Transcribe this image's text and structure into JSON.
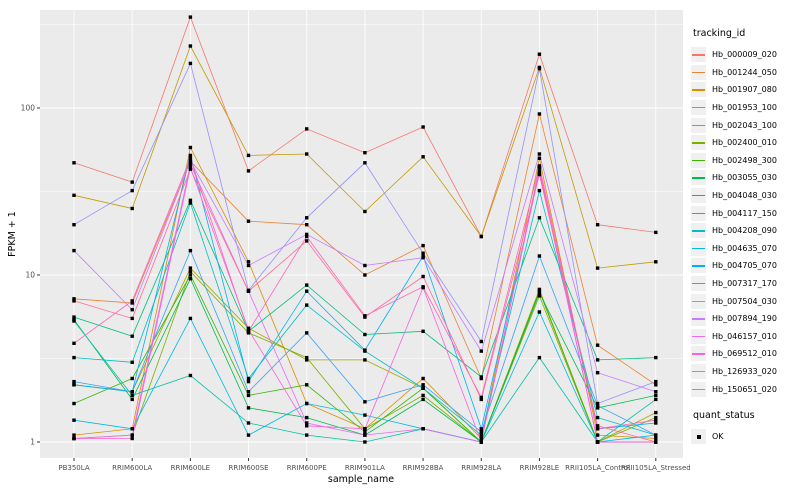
{
  "colors": {
    "panel_bg": "#EBEBEB",
    "grid_major": "#FFFFFF",
    "grid_minor": "#FFFFFF",
    "axis_text": "#4D4D4D",
    "axis_title": "#000000",
    "tick_mark": "#333333",
    "point": "#000000",
    "legend_key_bg": "#F0F0F0"
  },
  "legend": {
    "tracking_title": "tracking_id",
    "quant_title": "quant_status",
    "quant_items": [
      {
        "label": "OK",
        "marker": "black-square"
      }
    ]
  },
  "chart_data": {
    "type": "line",
    "title": "",
    "xlabel": "sample_name",
    "ylabel": "FPKM + 1",
    "y_scale": "log10",
    "y_ticks": [
      "1",
      "10",
      "100"
    ],
    "y_tick_values": [
      1,
      10,
      100
    ],
    "y_minor_values": [
      3.162,
      31.62,
      316.2
    ],
    "ylim": [
      0.93,
      390
    ],
    "grid": true,
    "legend_position": "right",
    "point_marker": "black-square",
    "categories": [
      "PB350LA",
      "RRIM600LA",
      "RRIM600LE",
      "RRIM600SE",
      "RRIM600PE",
      "RRIM901LA",
      "RRIM928BA",
      "RRIM928LA",
      "RRIM928LE",
      "RRII105LA_Control",
      "RRII105LA_Stressed"
    ],
    "series": [
      {
        "name": "Hb_000009_020",
        "color": "#F8766D",
        "values": [
          47,
          36,
          350,
          42,
          75,
          54,
          77,
          17,
          210,
          20,
          18
        ]
      },
      {
        "name": "Hb_001244_050",
        "color": "#EA8331",
        "values": [
          7.2,
          6.8,
          48,
          21,
          20,
          10,
          15,
          2.4,
          92,
          3.8,
          2.2
        ]
      },
      {
        "name": "Hb_001907_080",
        "color": "#D89000",
        "values": [
          1.1,
          1.2,
          58,
          12,
          1.7,
          1.2,
          2.4,
          1.05,
          50,
          1.1,
          1.05
        ]
      },
      {
        "name": "Hb_001953_100",
        "color": "#C09B00",
        "values": [
          30,
          25,
          235,
          52,
          53,
          24,
          51,
          17,
          175,
          11,
          12
        ]
      },
      {
        "name": "Hb_002043_100",
        "color": "#A3A500",
        "values": [
          2.2,
          2.0,
          11,
          4.8,
          3.1,
          3.1,
          2.1,
          1.0,
          8.2,
          1.0,
          1.5
        ]
      },
      {
        "name": "Hb_002400_010",
        "color": "#7CAE00",
        "values": [
          1.05,
          1.1,
          10.5,
          4.5,
          3.2,
          1.2,
          1.9,
          1.0,
          7.5,
          1.0,
          1.4
        ]
      },
      {
        "name": "Hb_002498_300",
        "color": "#39B600",
        "values": [
          1.7,
          2.4,
          10,
          1.9,
          2.2,
          1.15,
          2.1,
          1.0,
          8.0,
          1.0,
          1.0
        ]
      },
      {
        "name": "Hb_003055_030",
        "color": "#00BB4E",
        "values": [
          5.4,
          1.8,
          9.5,
          1.6,
          1.4,
          1.1,
          1.8,
          1.0,
          7.8,
          1.6,
          1.9
        ]
      },
      {
        "name": "Hb_004048_030",
        "color": "#00BF7D",
        "values": [
          5.6,
          4.3,
          28,
          4.6,
          8.7,
          4.4,
          4.6,
          2.45,
          22,
          3.1,
          3.2
        ]
      },
      {
        "name": "Hb_004117_150",
        "color": "#00C1A3",
        "values": [
          5.3,
          1.9,
          2.5,
          1.3,
          1.1,
          1.0,
          1.2,
          1.0,
          3.2,
          1.0,
          1.8
        ]
      },
      {
        "name": "Hb_004208_090",
        "color": "#00BFC4",
        "values": [
          3.2,
          3.0,
          27,
          2.4,
          6.6,
          3.5,
          2.1,
          1.1,
          32,
          1.4,
          1.1
        ]
      },
      {
        "name": "Hb_004635_070",
        "color": "#00BAE0",
        "values": [
          1.35,
          1.2,
          5.5,
          1.1,
          1.7,
          1.45,
          1.2,
          1.0,
          6.0,
          1.0,
          1.1
        ]
      },
      {
        "name": "Hb_004705_070",
        "color": "#00B0F6",
        "values": [
          2.2,
          2.0,
          52,
          2.3,
          8.0,
          3.55,
          13,
          1.2,
          41,
          1.2,
          1.3
        ]
      },
      {
        "name": "Hb_007317_170",
        "color": "#35A2FF",
        "values": [
          2.3,
          2.0,
          14,
          2.0,
          4.5,
          1.74,
          2.2,
          1.15,
          13,
          1.65,
          1.1
        ]
      },
      {
        "name": "Hb_007504_030",
        "color": "#9590FF",
        "values": [
          20,
          32,
          185,
          8.1,
          22,
          47,
          13.5,
          4.0,
          172,
          1.7,
          2.3
        ]
      },
      {
        "name": "Hb_007894_190",
        "color": "#C77CFF",
        "values": [
          14,
          6.2,
          48,
          11.4,
          17.5,
          11.4,
          12.7,
          3.5,
          53,
          2.6,
          2.0
        ]
      },
      {
        "name": "Hb_046157_010",
        "color": "#E76BF3",
        "values": [
          1.05,
          1.1,
          46,
          8.0,
          1.3,
          1.1,
          1.2,
          1.0,
          44,
          1.0,
          1.0
        ]
      },
      {
        "name": "Hb_069512_010",
        "color": "#FA62DB",
        "values": [
          1.05,
          1.05,
          44,
          4.7,
          1.25,
          1.2,
          8.4,
          1.0,
          42,
          1.0,
          1.0
        ]
      },
      {
        "name": "Hb_126933_020",
        "color": "#FF62BC",
        "values": [
          3.9,
          7.0,
          50,
          4.6,
          17,
          5.7,
          8.5,
          1.85,
          45,
          1.2,
          1.35
        ]
      },
      {
        "name": "Hb_150651_020",
        "color": "#FF6A98",
        "values": [
          7.0,
          5.5,
          43,
          8.0,
          16,
          5.6,
          9.8,
          1.8,
          40,
          1.25,
          1.0
        ]
      }
    ]
  }
}
